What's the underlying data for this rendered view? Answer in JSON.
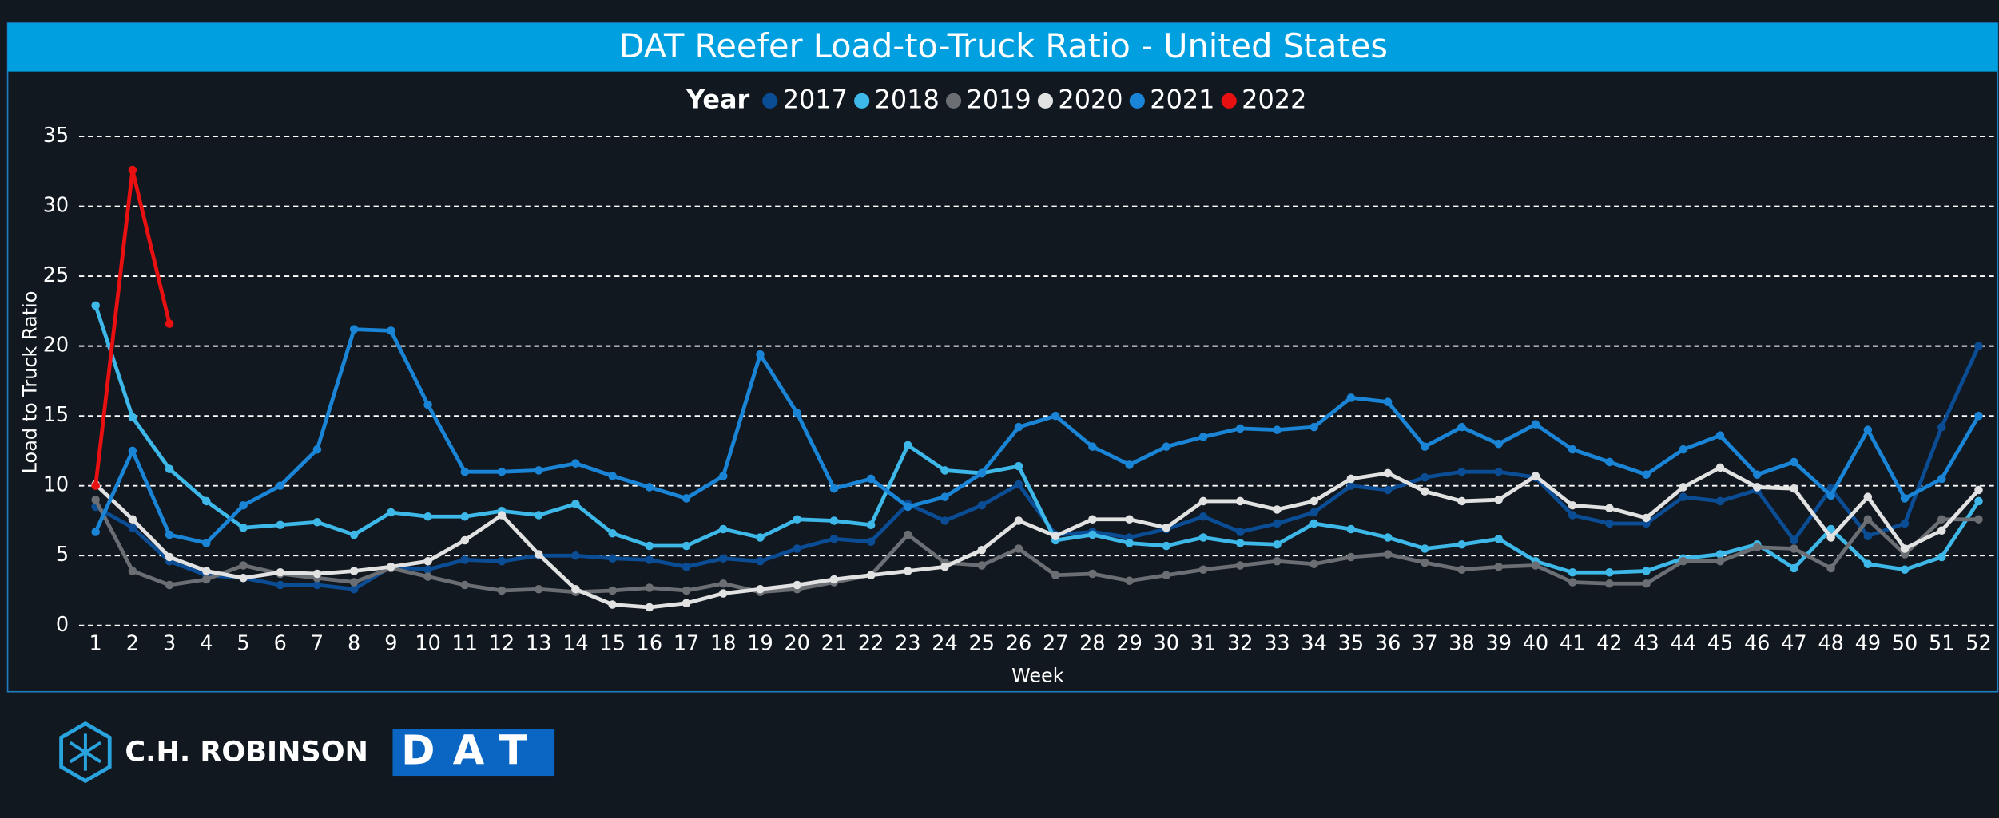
{
  "chart_data": {
    "type": "line",
    "title": "DAT Reefer Load-to-Truck Ratio - United States",
    "legend_title": "Year",
    "x_label": "Week",
    "y_label": "Load to Truck Ratio",
    "categories": [
      1,
      2,
      3,
      4,
      5,
      6,
      7,
      8,
      9,
      10,
      11,
      12,
      13,
      14,
      15,
      16,
      17,
      18,
      19,
      20,
      21,
      22,
      23,
      24,
      25,
      26,
      27,
      28,
      29,
      30,
      31,
      32,
      33,
      34,
      35,
      36,
      37,
      38,
      39,
      40,
      41,
      42,
      43,
      44,
      45,
      46,
      47,
      48,
      49,
      50,
      51,
      52
    ],
    "ylim": [
      0,
      35
    ],
    "yticks": [
      0,
      5,
      10,
      15,
      20,
      25,
      30,
      35
    ],
    "grid": true,
    "series": [
      {
        "name": "2017",
        "color": "#0b4d94",
        "values": [
          8.5,
          7,
          4.6,
          3.6,
          3.4,
          2.9,
          2.9,
          2.6,
          4.2,
          4,
          4.7,
          4.6,
          5,
          5,
          4.8,
          4.7,
          4.2,
          4.8,
          4.6,
          5.5,
          6.2,
          6,
          8.7,
          7.5,
          8.6,
          10.1,
          6.5,
          6.7,
          6.3,
          6.9,
          7.8,
          6.7,
          7.3,
          8.1,
          10,
          9.7,
          10.6,
          11,
          11,
          10.6,
          7.9,
          7.3,
          7.3,
          9.2,
          8.9,
          9.7,
          6.1,
          9.8,
          6.4,
          7.3,
          14.2,
          20
        ]
      },
      {
        "name": "2018",
        "color": "#3db8e8",
        "values": [
          22.9,
          14.9,
          11.2,
          8.9,
          7,
          7.2,
          7.4,
          6.5,
          8.1,
          7.8,
          7.8,
          8.2,
          7.9,
          8.7,
          6.6,
          5.7,
          5.7,
          6.9,
          6.3,
          7.6,
          7.5,
          7.2,
          12.9,
          11.1,
          10.9,
          11.4,
          6.1,
          6.5,
          5.9,
          5.7,
          6.3,
          5.9,
          5.8,
          7.3,
          6.9,
          6.3,
          5.5,
          5.8,
          6.2,
          4.6,
          3.8,
          3.8,
          3.9,
          4.8,
          5.1,
          5.8,
          4.1,
          6.9,
          4.4,
          4,
          4.9,
          8.9
        ]
      },
      {
        "name": "2019",
        "color": "#6b6e73",
        "values": [
          9,
          3.9,
          2.9,
          3.3,
          4.3,
          3.7,
          3.4,
          3.1,
          4.1,
          3.5,
          2.9,
          2.5,
          2.6,
          2.4,
          2.5,
          2.7,
          2.5,
          3,
          2.4,
          2.6,
          3.1,
          3.6,
          6.5,
          4.5,
          4.3,
          5.5,
          3.6,
          3.7,
          3.2,
          3.6,
          4,
          4.3,
          4.6,
          4.4,
          4.9,
          5.1,
          4.5,
          4,
          4.2,
          4.3,
          3.1,
          3,
          3,
          4.6,
          4.6,
          5.6,
          5.5,
          4.1,
          7.6,
          5.1,
          7.6,
          7.6
        ]
      },
      {
        "name": "2020",
        "color": "#e2e2e2",
        "values": [
          10.1,
          7.6,
          4.9,
          3.9,
          3.4,
          3.8,
          3.7,
          3.9,
          4.2,
          4.6,
          6.1,
          7.9,
          5.1,
          2.6,
          1.5,
          1.3,
          1.6,
          2.3,
          2.6,
          2.9,
          3.3,
          3.6,
          3.9,
          4.2,
          5.4,
          7.5,
          6.4,
          7.6,
          7.6,
          7,
          8.9,
          8.9,
          8.3,
          8.9,
          10.5,
          10.9,
          9.6,
          8.9,
          9,
          10.7,
          8.6,
          8.4,
          7.7,
          9.9,
          11.3,
          9.9,
          9.8,
          6.3,
          9.2,
          5.5,
          6.8,
          9.7
        ]
      },
      {
        "name": "2021",
        "color": "#1a85d6",
        "values": [
          6.7,
          12.5,
          6.5,
          5.9,
          8.6,
          10,
          12.6,
          21.2,
          21.1,
          15.8,
          11,
          11,
          11.1,
          11.6,
          10.7,
          9.9,
          9.1,
          10.7,
          19.4,
          15.2,
          9.8,
          10.5,
          8.5,
          9.2,
          10.9,
          14.2,
          15,
          12.8,
          11.5,
          12.8,
          13.5,
          14.1,
          14,
          14.2,
          16.3,
          16,
          12.8,
          14.2,
          13,
          14.4,
          12.6,
          11.7,
          10.8,
          12.6,
          13.6,
          10.8,
          11.7,
          9.3,
          14,
          9.1,
          10.5,
          15
        ]
      },
      {
        "name": "2022",
        "color": "#e81010",
        "values": [
          10,
          32.6,
          21.6,
          null,
          null,
          null,
          null,
          null,
          null,
          null,
          null,
          null,
          null,
          null,
          null,
          null,
          null,
          null,
          null,
          null,
          null,
          null,
          null,
          null,
          null,
          null,
          null,
          null,
          null,
          null,
          null,
          null,
          null,
          null,
          null,
          null,
          null,
          null,
          null,
          null,
          null,
          null,
          null,
          null,
          null,
          null,
          null,
          null,
          null,
          null,
          null,
          null
        ]
      }
    ]
  },
  "logos": {
    "left": "C.H. ROBINSON",
    "right": "DAT"
  }
}
